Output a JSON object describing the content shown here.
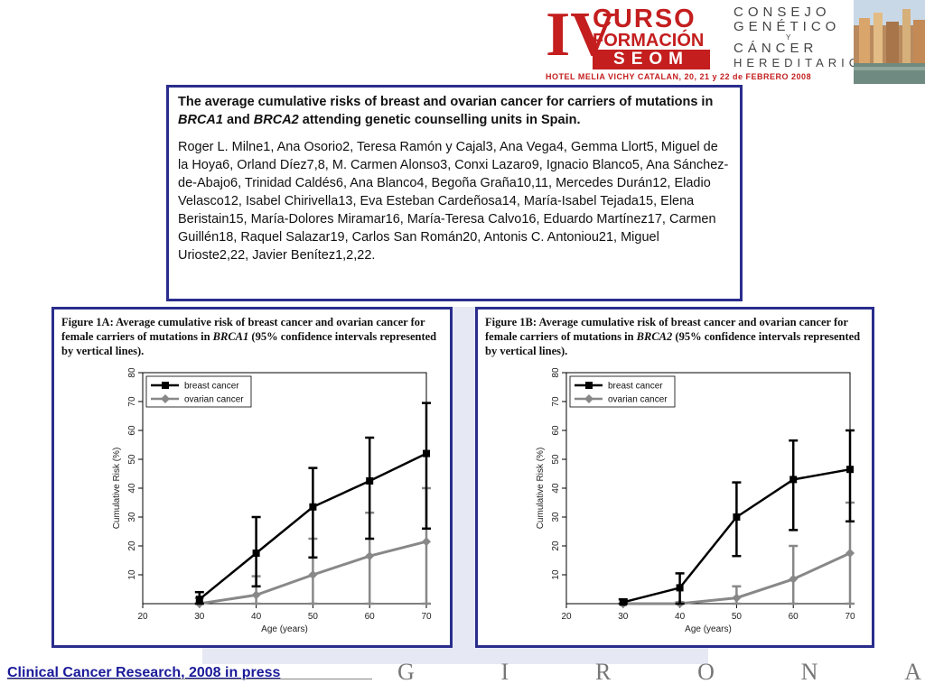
{
  "header": {
    "logo_numeral": "IV",
    "logo_line1": "CURSO",
    "logo_line2": "FORMACIÓN",
    "logo_line3": "SEOM",
    "consejo_lines": [
      "CONSEJO",
      "GENÉTICO",
      "Y",
      "CÁNCER",
      "HEREDITARIO"
    ],
    "hotel_text": "HOTEL MELIA VICHY CATALAN, 20, 21 y 22 de FEBRERO 2008",
    "brand_color": "#c41e1e"
  },
  "paper": {
    "title": "The average cumulative risks of breast and ovarian cancer for carriers of mutations in BRCA1 and BRCA2 attending genetic counselling units in Spain.",
    "authors": "Roger L. Milne1, Ana Osorio2, Teresa Ramón y Cajal3, Ana Vega4, Gemma Llort5, Miguel de la Hoya6, Orland Díez7,8, M. Carmen Alonso3, Conxi Lazaro9, Ignacio Blanco5, Ana Sánchez-de-Abajo6, Trinidad Caldés6, Ana Blanco4, Begoña Graña10,11, Mercedes Durán12, Eladio Velasco12, Isabel Chirivella13, Eva Esteban Cardeñosa14, María-Isabel Tejada15, Elena Beristain15, María-Dolores Miramar16, María-Teresa Calvo16, Eduardo Martínez17, Carmen Guillén18, Raquel Salazar19, Carlos San Román20, Antonis C. Antoniou21, Miguel Urioste2,22, Javier Benítez1,2,22.",
    "border_color": "#2a2d8c"
  },
  "figures": [
    {
      "caption": "Figure 1A: Average cumulative risk of breast cancer and ovarian cancer for female carriers of mutations in BRCA1 (95% confidence intervals represented by vertical lines).",
      "xlabel": "Age (years)",
      "ylabel": "Cumulative Risk (%)"
    },
    {
      "caption": "Figure 1B: Average cumulative risk of breast cancer and ovarian cancer for female carriers of mutations in BRCA2 (95% confidence intervals represented by vertical lines).",
      "xlabel": "Age (years)",
      "ylabel": "Cumulative Risk (%)"
    }
  ],
  "chart_data": [
    {
      "type": "line",
      "title": "Figure 1A: Average cumulative risk of breast cancer and ovarian cancer for female carriers of mutations in BRCA1 (95% confidence intervals represented by vertical lines).",
      "xlabel": "Age (years)",
      "ylabel": "Cumulative Risk (%)",
      "xlim": [
        20,
        70
      ],
      "ylim": [
        0,
        80
      ],
      "xticks": [
        20,
        30,
        40,
        50,
        60,
        70
      ],
      "yticks": [
        10,
        20,
        30,
        40,
        50,
        60,
        70,
        80
      ],
      "grid": false,
      "legend": "top-left",
      "x": [
        30,
        40,
        50,
        60,
        70
      ],
      "series": [
        {
          "name": "breast cancer",
          "color": "#000000",
          "marker": "square",
          "values": [
            1.5,
            17.5,
            33.5,
            42.5,
            52
          ],
          "ci_low": [
            0,
            6,
            16,
            22.5,
            26
          ],
          "ci_high": [
            4,
            30,
            47,
            57.5,
            69.5
          ]
        },
        {
          "name": "ovarian cancer",
          "color": "#888888",
          "marker": "diamond",
          "values": [
            0,
            3,
            10,
            16.5,
            21.5
          ],
          "ci_low": [
            0,
            0,
            0,
            0,
            0
          ],
          "ci_high": [
            2,
            9.5,
            22.5,
            31.5,
            40
          ]
        }
      ]
    },
    {
      "type": "line",
      "title": "Figure 1B: Average cumulative risk of breast cancer and ovarian cancer for female carriers of mutations in BRCA2 (95% confidence intervals represented by vertical lines).",
      "xlabel": "Age (years)",
      "ylabel": "Cumulative Risk (%)",
      "xlim": [
        20,
        70
      ],
      "ylim": [
        0,
        80
      ],
      "xticks": [
        20,
        30,
        40,
        50,
        60,
        70
      ],
      "yticks": [
        10,
        20,
        30,
        40,
        50,
        60,
        70,
        80
      ],
      "grid": false,
      "legend": "top-left",
      "x": [
        30,
        40,
        50,
        60,
        70
      ],
      "series": [
        {
          "name": "breast cancer",
          "color": "#000000",
          "marker": "square",
          "values": [
            0.5,
            5.5,
            30,
            43,
            46.5
          ],
          "ci_low": [
            0,
            0,
            16.5,
            25.5,
            28.5
          ],
          "ci_high": [
            1.5,
            10.5,
            42,
            56.5,
            60
          ]
        },
        {
          "name": "ovarian cancer",
          "color": "#888888",
          "marker": "diamond",
          "values": [
            0,
            0,
            2,
            8.5,
            17.5
          ],
          "ci_low": [
            0,
            0,
            0,
            0,
            0
          ],
          "ci_high": [
            0,
            0.5,
            6,
            20,
            35
          ]
        }
      ]
    }
  ],
  "footer": {
    "citation": "Clinical Cancer Research, 2008 in press",
    "girona_letters": [
      "G",
      "I",
      "R",
      "O",
      "N",
      "A"
    ]
  }
}
